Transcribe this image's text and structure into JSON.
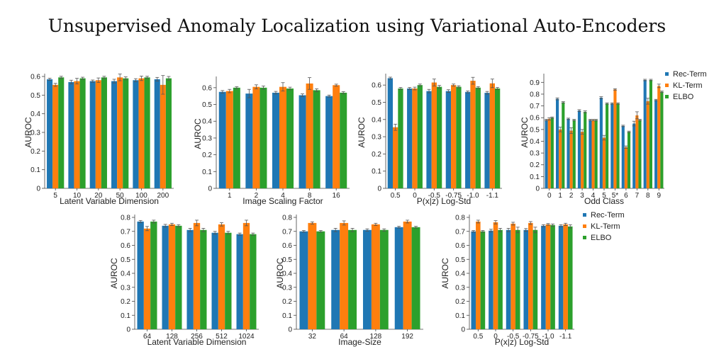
{
  "title": "Unsupervised Anomaly Localization using Variational Auto-Encoders",
  "legend": {
    "entries": [
      "Rec-Term",
      "KL-Term",
      "ELBO"
    ]
  },
  "colors": {
    "rec": "#1f77b4",
    "kl": "#ff7f0e",
    "elbo": "#2ca02c"
  },
  "chart_data": [
    {
      "type": "bar",
      "xlabel": "Latent Variable Dimension",
      "ylabel": "AUROC",
      "ylim": [
        0,
        0.6
      ],
      "yticks": [
        "0",
        "0.1",
        "0.2",
        "0.3",
        "0.4",
        "0.5",
        "0.6"
      ],
      "categories": [
        "5",
        "10",
        "20",
        "50",
        "100",
        "200"
      ],
      "series": [
        {
          "name": "Rec-Term",
          "values": [
            0.585,
            0.57,
            0.575,
            0.575,
            0.58,
            0.585
          ],
          "err": [
            0.006,
            0.01,
            0.006,
            0.01,
            0.008,
            0.01
          ]
        },
        {
          "name": "KL-Term",
          "values": [
            0.555,
            0.575,
            0.58,
            0.595,
            0.59,
            0.555
          ],
          "err": [
            0.008,
            0.015,
            0.012,
            0.018,
            0.012,
            0.05
          ]
        },
        {
          "name": "ELBO",
          "values": [
            0.595,
            0.59,
            0.595,
            0.59,
            0.595,
            0.59
          ],
          "err": [
            0.006,
            0.006,
            0.006,
            0.008,
            0.006,
            0.01
          ]
        }
      ]
    },
    {
      "type": "bar",
      "xlabel": "Image Scaling Factor",
      "ylabel": "AUROC",
      "ylim": [
        0,
        0.65
      ],
      "yticks": [
        "0",
        "0.1",
        "0.2",
        "0.3",
        "0.4",
        "0.5",
        "0.6"
      ],
      "categories": [
        "1",
        "2",
        "4",
        "8",
        "16"
      ],
      "series": [
        {
          "name": "Rec-Term",
          "values": [
            0.575,
            0.565,
            0.57,
            0.555,
            0.55
          ],
          "err": [
            0.008,
            0.025,
            0.008,
            0.008,
            0.006
          ]
        },
        {
          "name": "KL-Term",
          "values": [
            0.58,
            0.605,
            0.605,
            0.625,
            0.615
          ],
          "err": [
            0.01,
            0.012,
            0.025,
            0.035,
            0.006
          ]
        },
        {
          "name": "ELBO",
          "values": [
            0.6,
            0.6,
            0.595,
            0.585,
            0.57
          ],
          "err": [
            0.006,
            0.01,
            0.008,
            0.008,
            0.006
          ]
        }
      ]
    },
    {
      "type": "bar",
      "xlabel": "P(x|z) Log-Std",
      "ylabel": "AUROC",
      "ylim": [
        0,
        0.65
      ],
      "yticks": [
        "0",
        "0.1",
        "0.2",
        "0.3",
        "0.4",
        "0.5",
        "0.6"
      ],
      "categories": [
        "0.5",
        "0",
        "-0.5",
        "-0.75",
        "-1.0",
        "-1.1"
      ],
      "series": [
        {
          "name": "Rec-Term",
          "values": [
            0.64,
            0.58,
            0.565,
            0.565,
            0.56,
            0.555
          ],
          "err": [
            0.006,
            0.006,
            0.01,
            0.008,
            0.006,
            0.008
          ]
        },
        {
          "name": "KL-Term",
          "values": [
            0.355,
            0.58,
            0.615,
            0.6,
            0.625,
            0.61
          ],
          "err": [
            0.018,
            0.008,
            0.02,
            0.006,
            0.02,
            0.025
          ]
        },
        {
          "name": "ELBO",
          "values": [
            0.58,
            0.6,
            0.59,
            0.59,
            0.585,
            0.58
          ],
          "err": [
            0.006,
            0.006,
            0.008,
            0.006,
            0.006,
            0.006
          ]
        }
      ]
    },
    {
      "type": "bar",
      "xlabel": "Odd Class",
      "ylabel": "AUROC",
      "ylim": [
        0,
        0.95
      ],
      "yticks": [
        "0",
        "0.1",
        "0.2",
        "0.3",
        "0.4",
        "0.5",
        "0.6",
        "0.7",
        "0.8",
        "0.9"
      ],
      "categories": [
        "0",
        "1",
        "2",
        "3",
        "4",
        "5",
        "5*",
        "6",
        "7",
        "8",
        "9"
      ],
      "series": [
        {
          "name": "Rec-Term",
          "values": [
            0.58,
            0.76,
            0.59,
            0.66,
            0.58,
            0.77,
            0.72,
            0.53,
            0.55,
            0.92,
            0.75
          ],
          "err": [
            0.006,
            0.008,
            0.006,
            0.008,
            0.006,
            0.008,
            0.006,
            0.006,
            0.02,
            0.006,
            0.006
          ]
        },
        {
          "name": "KL-Term",
          "values": [
            0.59,
            0.5,
            0.49,
            0.48,
            0.58,
            0.43,
            0.84,
            0.35,
            0.62,
            0.74,
            0.87
          ],
          "err": [
            0.01,
            0.02,
            0.025,
            0.02,
            0.006,
            0.02,
            0.006,
            0.01,
            0.03,
            0.025,
            0.015
          ]
        },
        {
          "name": "ELBO",
          "values": [
            0.6,
            0.73,
            0.58,
            0.65,
            0.58,
            0.72,
            0.72,
            0.48,
            0.58,
            0.92,
            0.82
          ],
          "err": [
            0.006,
            0.006,
            0.006,
            0.008,
            0.006,
            0.006,
            0.006,
            0.006,
            0.006,
            0.006,
            0.006
          ]
        }
      ]
    },
    {
      "type": "bar",
      "xlabel": "Latent Variable Dimension",
      "ylabel": "AUROC",
      "ylim": [
        0,
        0.8
      ],
      "yticks": [
        "0",
        "0.1",
        "0.2",
        "0.3",
        "0.4",
        "0.5",
        "0.6",
        "0.7",
        "0.8"
      ],
      "categories": [
        "64",
        "128",
        "256",
        "512",
        "1024"
      ],
      "series": [
        {
          "name": "Rec-Term",
          "values": [
            0.77,
            0.74,
            0.71,
            0.69,
            0.68
          ],
          "err": [
            0.008,
            0.01,
            0.012,
            0.01,
            0.008
          ]
        },
        {
          "name": "KL-Term",
          "values": [
            0.72,
            0.75,
            0.76,
            0.75,
            0.76
          ],
          "err": [
            0.015,
            0.008,
            0.02,
            0.012,
            0.02
          ]
        },
        {
          "name": "ELBO",
          "values": [
            0.77,
            0.74,
            0.71,
            0.69,
            0.68
          ],
          "err": [
            0.01,
            0.008,
            0.012,
            0.01,
            0.008
          ]
        }
      ]
    },
    {
      "type": "bar",
      "xlabel": "Image-Size",
      "ylabel": "AUROC",
      "ylim": [
        0,
        0.8
      ],
      "yticks": [
        "0",
        "0.1",
        "0.2",
        "0.3",
        "0.4",
        "0.5",
        "0.6",
        "0.7",
        "0.8"
      ],
      "categories": [
        "32",
        "64",
        "128",
        "192"
      ],
      "series": [
        {
          "name": "Rec-Term",
          "values": [
            0.7,
            0.71,
            0.71,
            0.73
          ],
          "err": [
            0.006,
            0.012,
            0.008,
            0.006
          ]
        },
        {
          "name": "KL-Term",
          "values": [
            0.76,
            0.76,
            0.75,
            0.77
          ],
          "err": [
            0.008,
            0.015,
            0.008,
            0.01
          ]
        },
        {
          "name": "ELBO",
          "values": [
            0.7,
            0.71,
            0.71,
            0.73
          ],
          "err": [
            0.006,
            0.012,
            0.008,
            0.006
          ]
        }
      ]
    },
    {
      "type": "bar",
      "xlabel": "P(x|z) Log-Std",
      "ylabel": "AUROC",
      "ylim": [
        0,
        0.8
      ],
      "yticks": [
        "0",
        "0.1",
        "0.2",
        "0.3",
        "0.4",
        "0.5",
        "0.6",
        "0.7",
        "0.8"
      ],
      "categories": [
        "0.5",
        "0",
        "-0.5",
        "-0.75",
        "-1.0",
        "-1.1"
      ],
      "series": [
        {
          "name": "Rec-Term",
          "values": [
            0.7,
            0.705,
            0.71,
            0.71,
            0.74,
            0.74
          ],
          "err": [
            0.006,
            0.01,
            0.012,
            0.01,
            0.008,
            0.008
          ]
        },
        {
          "name": "KL-Term",
          "values": [
            0.77,
            0.765,
            0.755,
            0.76,
            0.75,
            0.75
          ],
          "err": [
            0.01,
            0.012,
            0.01,
            0.01,
            0.006,
            0.008
          ]
        },
        {
          "name": "ELBO",
          "values": [
            0.7,
            0.71,
            0.71,
            0.71,
            0.745,
            0.735
          ],
          "err": [
            0.006,
            0.012,
            0.02,
            0.02,
            0.008,
            0.012
          ]
        }
      ]
    }
  ]
}
